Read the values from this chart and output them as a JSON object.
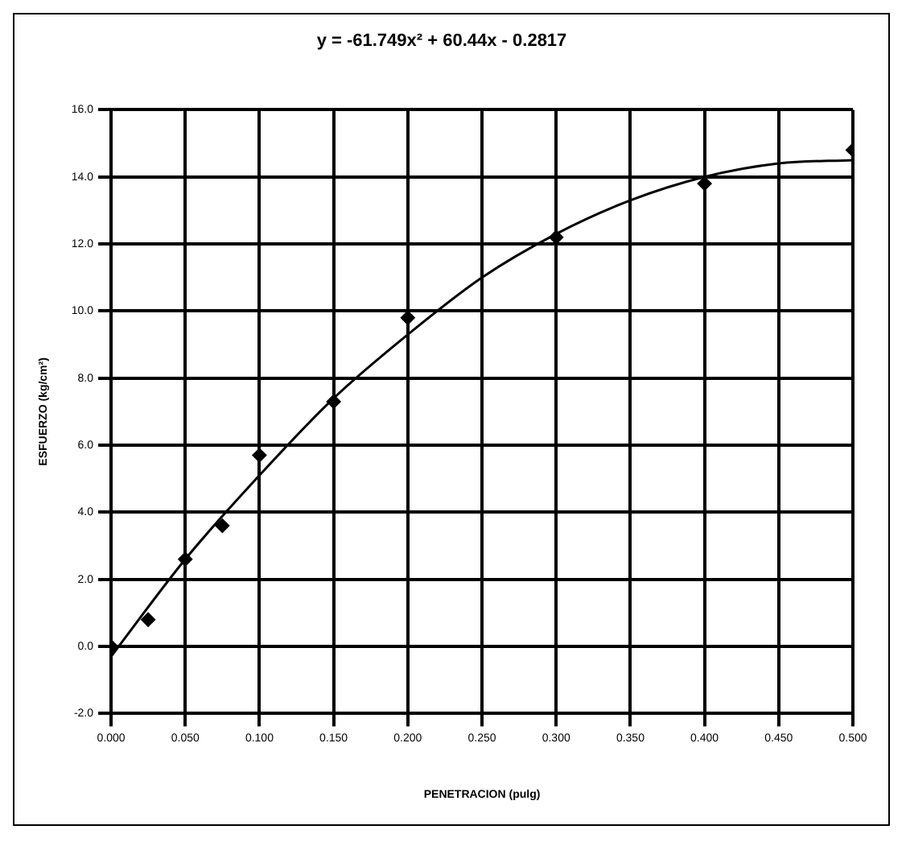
{
  "chart_data": {
    "type": "scatter",
    "title": "y = -61.749x² + 60.44x - 0.2817",
    "xlabel": "PENETRACION (pulg)",
    "ylabel": "ESFUERZO (kg/cm²)",
    "xlim": [
      0,
      0.5
    ],
    "xticks": [
      {
        "value": 0,
        "label": "0.000"
      },
      {
        "value": 0.05,
        "label": "0.050"
      },
      {
        "value": 0.1,
        "label": "0.100"
      },
      {
        "value": 0.15,
        "label": "0.150"
      },
      {
        "value": 0.2,
        "label": "0.200"
      },
      {
        "value": 0.25,
        "label": "0.250"
      },
      {
        "value": 0.3,
        "label": "0.300"
      },
      {
        "value": 0.35,
        "label": "0.350"
      },
      {
        "value": 0.4,
        "label": "0.400"
      },
      {
        "value": 0.45,
        "label": "0.450"
      },
      {
        "value": 0.5,
        "label": "0.500"
      }
    ],
    "ylim": [
      -2,
      16
    ],
    "yticks": [
      {
        "value": -2,
        "label": "-2.0"
      },
      {
        "value": 0,
        "label": "0.0"
      },
      {
        "value": 2,
        "label": "2.0"
      },
      {
        "value": 4,
        "label": "4.0"
      },
      {
        "value": 6,
        "label": "6.0"
      },
      {
        "value": 8,
        "label": "8.0"
      },
      {
        "value": 10,
        "label": "10.0"
      },
      {
        "value": 12,
        "label": "12.0"
      },
      {
        "value": 14,
        "label": "14.0"
      },
      {
        "value": 16,
        "label": "16.0"
      }
    ],
    "grid": true,
    "marker": "diamond",
    "series": [
      {
        "color": "#000000",
        "x": [
          0,
          0.025,
          0.05,
          0.075,
          0.1,
          0.15,
          0.2,
          0.3,
          0.4,
          0.5
        ],
        "values": [
          0,
          0.8,
          2.6,
          3.6,
          5.7,
          7.3,
          9.8,
          12.2,
          13.8,
          14.8
        ]
      },
      {
        "type": "line",
        "color": "#000000",
        "marker": "none",
        "x": [
          0,
          0.05,
          0.1,
          0.15,
          0.2,
          0.25,
          0.3,
          0.35,
          0.4,
          0.45,
          0.5
        ],
        "values": [
          -0.3,
          2.6,
          5.1,
          7.4,
          9.3,
          11.0,
          12.3,
          13.3,
          14.0,
          14.4,
          14.5
        ]
      }
    ]
  }
}
